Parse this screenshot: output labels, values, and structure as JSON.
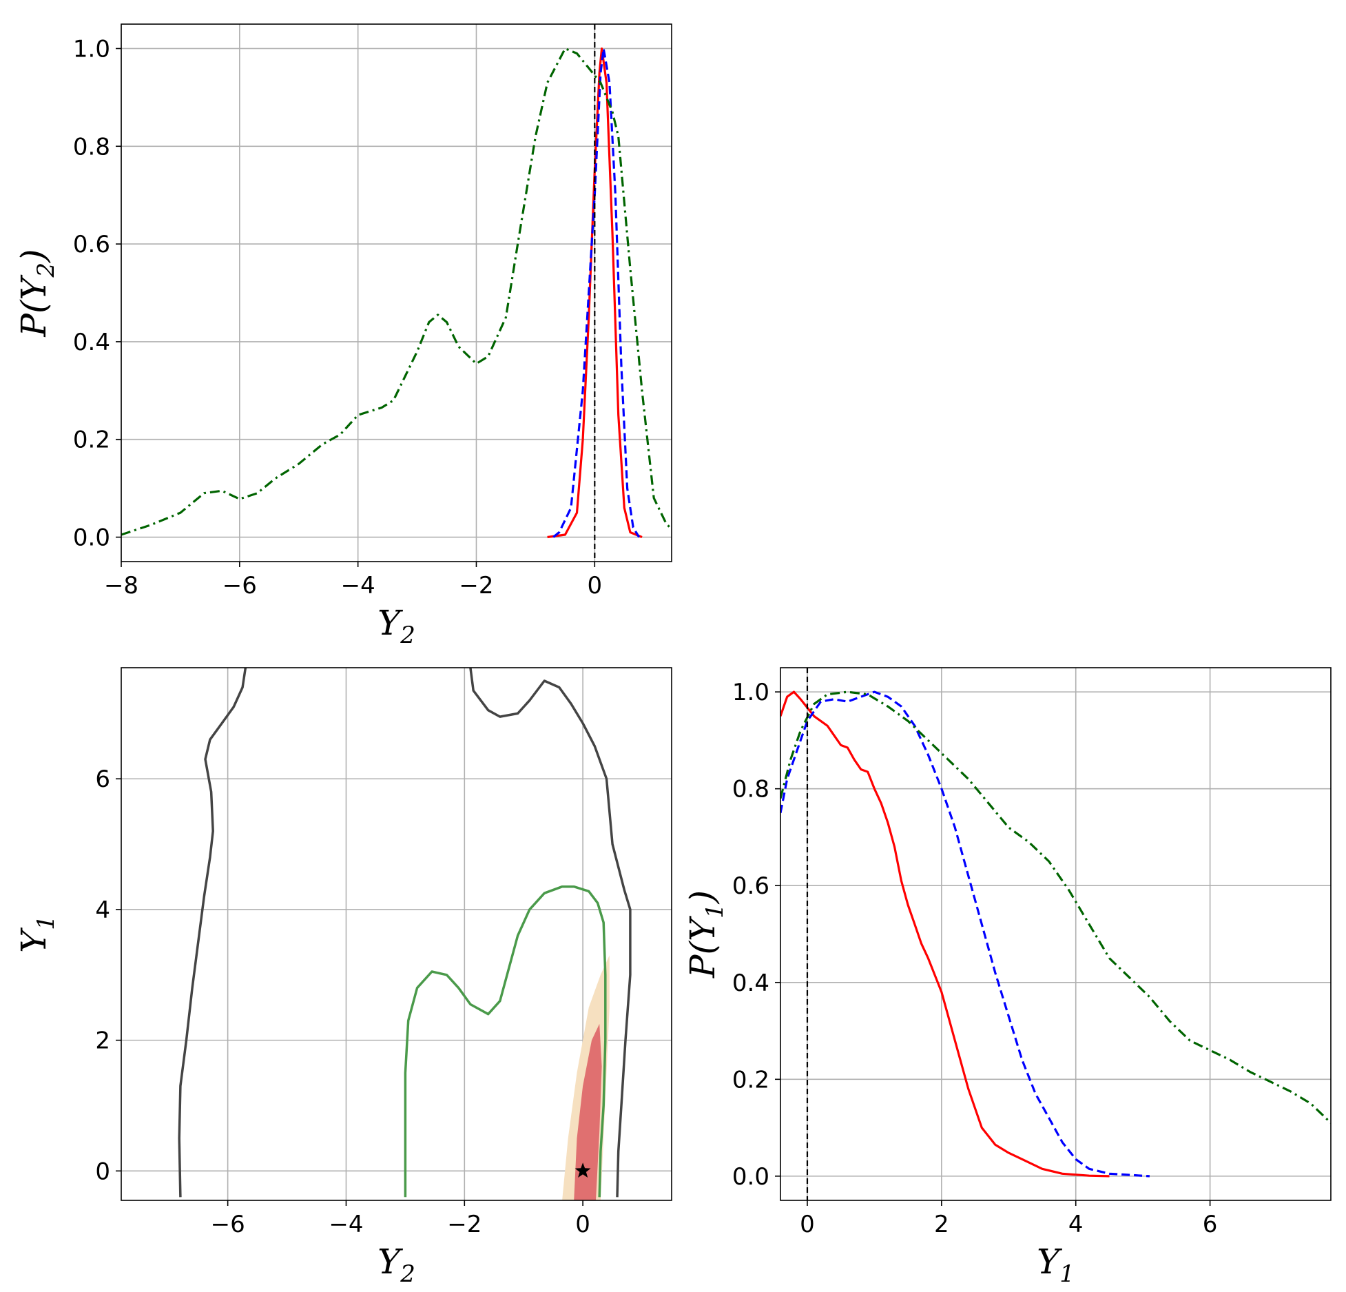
{
  "colors": {
    "method_a": "#ff0000",
    "method_b": "#0000ff",
    "method_c": "#006400",
    "truth": "#000000",
    "contour_outer": "#444444",
    "contour_mid": "#4a9a4a",
    "fill_inner": "#e07070",
    "fill_outer": "#f6e0c0"
  },
  "chart_data": [
    {
      "type": "line",
      "panel": "top-left",
      "xlabel": {
        "base": "Y",
        "sub": "2"
      },
      "ylabel": {
        "pre": "P(",
        "base": "Y",
        "sub": "2",
        "post": ")"
      },
      "xlim": [
        -8,
        1.3
      ],
      "ylim": [
        -0.05,
        1.05
      ],
      "xticks": [
        -8,
        -6,
        -4,
        -2,
        0
      ],
      "xtick_labels": [
        "−8",
        "−6",
        "−4",
        "−2",
        "0"
      ],
      "yticks": [
        0.0,
        0.2,
        0.4,
        0.6,
        0.8,
        1.0
      ],
      "ytick_labels": [
        "0.0",
        "0.2",
        "0.4",
        "0.6",
        "0.8",
        "1.0"
      ],
      "grid": true,
      "truth_x": 0,
      "series": [
        {
          "style": "solid",
          "color": "#ff0000",
          "points": [
            [
              -0.8,
              0.0
            ],
            [
              -0.5,
              0.005
            ],
            [
              -0.3,
              0.05
            ],
            [
              -0.2,
              0.2
            ],
            [
              -0.1,
              0.45
            ],
            [
              0.0,
              0.75
            ],
            [
              0.08,
              0.95
            ],
            [
              0.12,
              1.0
            ],
            [
              0.2,
              0.93
            ],
            [
              0.3,
              0.62
            ],
            [
              0.4,
              0.25
            ],
            [
              0.5,
              0.06
            ],
            [
              0.6,
              0.01
            ],
            [
              0.8,
              0.0
            ]
          ]
        },
        {
          "style": "dashed",
          "color": "#0000ff",
          "points": [
            [
              -0.7,
              0.0
            ],
            [
              -0.6,
              0.01
            ],
            [
              -0.4,
              0.06
            ],
            [
              -0.2,
              0.3
            ],
            [
              0.0,
              0.7
            ],
            [
              0.1,
              0.95
            ],
            [
              0.15,
              1.0
            ],
            [
              0.25,
              0.93
            ],
            [
              0.35,
              0.7
            ],
            [
              0.45,
              0.35
            ],
            [
              0.55,
              0.1
            ],
            [
              0.65,
              0.02
            ],
            [
              0.75,
              0.0
            ]
          ]
        },
        {
          "style": "dashdot",
          "color": "#006400",
          "points": [
            [
              -8.0,
              0.005
            ],
            [
              -7.5,
              0.025
            ],
            [
              -7.0,
              0.05
            ],
            [
              -6.6,
              0.09
            ],
            [
              -6.3,
              0.095
            ],
            [
              -6.0,
              0.078
            ],
            [
              -5.7,
              0.09
            ],
            [
              -5.4,
              0.12
            ],
            [
              -5.0,
              0.15
            ],
            [
              -4.6,
              0.19
            ],
            [
              -4.3,
              0.21
            ],
            [
              -4.0,
              0.25
            ],
            [
              -3.6,
              0.265
            ],
            [
              -3.4,
              0.28
            ],
            [
              -3.2,
              0.33
            ],
            [
              -3.0,
              0.38
            ],
            [
              -2.8,
              0.44
            ],
            [
              -2.65,
              0.455
            ],
            [
              -2.5,
              0.44
            ],
            [
              -2.3,
              0.39
            ],
            [
              -2.0,
              0.355
            ],
            [
              -1.8,
              0.37
            ],
            [
              -1.5,
              0.45
            ],
            [
              -1.3,
              0.6
            ],
            [
              -1.0,
              0.82
            ],
            [
              -0.8,
              0.93
            ],
            [
              -0.5,
              1.0
            ],
            [
              -0.3,
              0.99
            ],
            [
              -0.1,
              0.96
            ],
            [
              0.1,
              0.93
            ],
            [
              0.3,
              0.87
            ],
            [
              0.4,
              0.82
            ],
            [
              0.6,
              0.55
            ],
            [
              0.8,
              0.3
            ],
            [
              1.0,
              0.08
            ],
            [
              1.2,
              0.03
            ],
            [
              1.3,
              0.015
            ]
          ]
        }
      ]
    },
    {
      "type": "contour",
      "panel": "bottom-left",
      "xlabel": {
        "base": "Y",
        "sub": "2"
      },
      "ylabel": {
        "base": "Y",
        "sub": "1"
      },
      "xlim": [
        -7.8,
        1.5
      ],
      "ylim": [
        -0.45,
        7.7
      ],
      "xticks": [
        -6,
        -4,
        -2,
        0
      ],
      "xtick_labels": [
        "−6",
        "−4",
        "−2",
        "0"
      ],
      "yticks": [
        0,
        2,
        4,
        6
      ],
      "ytick_labels": [
        "0",
        "2",
        "4",
        "6"
      ],
      "grid": true,
      "truth_point": [
        0,
        0
      ],
      "filled_regions": [
        {
          "level": "outer",
          "color": "#f6e0c0",
          "points": [
            [
              -0.35,
              -0.45
            ],
            [
              -0.25,
              0.5
            ],
            [
              -0.1,
              1.5
            ],
            [
              0.1,
              2.5
            ],
            [
              0.3,
              3.0
            ],
            [
              0.45,
              3.3
            ],
            [
              0.45,
              2.5
            ],
            [
              0.4,
              1.5
            ],
            [
              0.35,
              0.5
            ],
            [
              0.3,
              -0.45
            ]
          ]
        },
        {
          "level": "inner",
          "color": "#e07070",
          "points": [
            [
              -0.15,
              -0.45
            ],
            [
              -0.1,
              0.5
            ],
            [
              0.0,
              1.3
            ],
            [
              0.15,
              2.0
            ],
            [
              0.28,
              2.25
            ],
            [
              0.32,
              1.6
            ],
            [
              0.28,
              0.6
            ],
            [
              0.22,
              -0.45
            ]
          ]
        }
      ],
      "contours": [
        {
          "color": "#444444",
          "points": [
            [
              -6.8,
              -0.4
            ],
            [
              -6.82,
              0.5
            ],
            [
              -6.8,
              1.3
            ],
            [
              -6.7,
              2.0
            ],
            [
              -6.6,
              2.8
            ],
            [
              -6.5,
              3.5
            ],
            [
              -6.4,
              4.2
            ],
            [
              -6.3,
              4.8
            ],
            [
              -6.25,
              5.2
            ],
            [
              -6.28,
              5.8
            ],
            [
              -6.38,
              6.3
            ],
            [
              -6.3,
              6.6
            ],
            [
              -6.1,
              6.85
            ],
            [
              -5.9,
              7.1
            ],
            [
              -5.75,
              7.4
            ],
            [
              -5.7,
              7.7
            ]
          ]
        },
        {
          "color": "#444444",
          "points": [
            [
              -1.9,
              7.7
            ],
            [
              -1.85,
              7.35
            ],
            [
              -1.6,
              7.05
            ],
            [
              -1.4,
              6.95
            ],
            [
              -1.1,
              7.0
            ],
            [
              -0.9,
              7.2
            ],
            [
              -0.65,
              7.5
            ],
            [
              -0.4,
              7.4
            ],
            [
              -0.2,
              7.15
            ],
            [
              0.0,
              6.85
            ],
            [
              0.2,
              6.5
            ],
            [
              0.4,
              6.0
            ],
            [
              0.5,
              5.0
            ],
            [
              0.7,
              4.3
            ],
            [
              0.8,
              4.0
            ],
            [
              0.8,
              3.0
            ],
            [
              0.72,
              2.0
            ],
            [
              0.65,
              1.0
            ],
            [
              0.6,
              0.3
            ],
            [
              0.58,
              -0.4
            ]
          ]
        },
        {
          "color": "#4a9a4a",
          "points": [
            [
              -3.0,
              -0.4
            ],
            [
              -3.0,
              0.5
            ],
            [
              -3.0,
              1.5
            ],
            [
              -2.95,
              2.3
            ],
            [
              -2.8,
              2.8
            ],
            [
              -2.55,
              3.05
            ],
            [
              -2.3,
              3.0
            ],
            [
              -2.1,
              2.8
            ],
            [
              -1.9,
              2.55
            ],
            [
              -1.6,
              2.4
            ],
            [
              -1.4,
              2.6
            ],
            [
              -1.25,
              3.1
            ],
            [
              -1.1,
              3.6
            ],
            [
              -0.9,
              4.0
            ],
            [
              -0.65,
              4.25
            ],
            [
              -0.35,
              4.35
            ],
            [
              -0.15,
              4.35
            ],
            [
              0.1,
              4.28
            ],
            [
              0.25,
              4.1
            ],
            [
              0.35,
              3.8
            ],
            [
              0.38,
              3.0
            ],
            [
              0.38,
              2.0
            ],
            [
              0.35,
              1.0
            ],
            [
              0.3,
              0.3
            ],
            [
              0.28,
              -0.4
            ]
          ]
        }
      ]
    },
    {
      "type": "line",
      "panel": "bottom-right",
      "xlabel": {
        "base": "Y",
        "sub": "1"
      },
      "ylabel": {
        "pre": "P(",
        "base": "Y",
        "sub": "1",
        "post": ")"
      },
      "xlim": [
        -0.4,
        7.8
      ],
      "ylim": [
        -0.05,
        1.05
      ],
      "xticks": [
        0,
        2,
        4,
        6
      ],
      "xtick_labels": [
        "0",
        "2",
        "4",
        "6"
      ],
      "yticks": [
        0.0,
        0.2,
        0.4,
        0.6,
        0.8,
        1.0
      ],
      "ytick_labels": [
        "0.0",
        "0.2",
        "0.4",
        "0.6",
        "0.8",
        "1.0"
      ],
      "grid": true,
      "truth_x": 0,
      "series": [
        {
          "style": "solid",
          "color": "#ff0000",
          "points": [
            [
              -0.4,
              0.95
            ],
            [
              -0.3,
              0.99
            ],
            [
              -0.2,
              1.0
            ],
            [
              -0.1,
              0.985
            ],
            [
              0.1,
              0.95
            ],
            [
              0.3,
              0.93
            ],
            [
              0.4,
              0.91
            ],
            [
              0.5,
              0.89
            ],
            [
              0.6,
              0.885
            ],
            [
              0.7,
              0.86
            ],
            [
              0.8,
              0.84
            ],
            [
              0.9,
              0.835
            ],
            [
              1.0,
              0.8
            ],
            [
              1.1,
              0.77
            ],
            [
              1.2,
              0.73
            ],
            [
              1.3,
              0.68
            ],
            [
              1.4,
              0.61
            ],
            [
              1.5,
              0.56
            ],
            [
              1.6,
              0.52
            ],
            [
              1.7,
              0.48
            ],
            [
              1.8,
              0.45
            ],
            [
              2.0,
              0.38
            ],
            [
              2.2,
              0.28
            ],
            [
              2.4,
              0.18
            ],
            [
              2.6,
              0.1
            ],
            [
              2.8,
              0.065
            ],
            [
              3.0,
              0.048
            ],
            [
              3.2,
              0.035
            ],
            [
              3.5,
              0.015
            ],
            [
              3.8,
              0.005
            ],
            [
              4.2,
              0.001
            ],
            [
              4.5,
              0.0
            ]
          ]
        },
        {
          "style": "dashed",
          "color": "#0000ff",
          "points": [
            [
              -0.4,
              0.75
            ],
            [
              -0.3,
              0.82
            ],
            [
              -0.1,
              0.9
            ],
            [
              0.0,
              0.94
            ],
            [
              0.2,
              0.98
            ],
            [
              0.4,
              0.985
            ],
            [
              0.6,
              0.98
            ],
            [
              0.8,
              0.99
            ],
            [
              1.0,
              1.0
            ],
            [
              1.2,
              0.99
            ],
            [
              1.4,
              0.97
            ],
            [
              1.6,
              0.93
            ],
            [
              1.8,
              0.87
            ],
            [
              2.0,
              0.8
            ],
            [
              2.2,
              0.72
            ],
            [
              2.4,
              0.62
            ],
            [
              2.6,
              0.52
            ],
            [
              2.8,
              0.42
            ],
            [
              3.0,
              0.33
            ],
            [
              3.2,
              0.24
            ],
            [
              3.4,
              0.17
            ],
            [
              3.6,
              0.12
            ],
            [
              3.8,
              0.07
            ],
            [
              4.0,
              0.035
            ],
            [
              4.2,
              0.015
            ],
            [
              4.5,
              0.005
            ],
            [
              5.1,
              0.0
            ]
          ]
        },
        {
          "style": "dashdot",
          "color": "#006400",
          "points": [
            [
              -0.4,
              0.78
            ],
            [
              -0.25,
              0.86
            ],
            [
              -0.1,
              0.92
            ],
            [
              0.1,
              0.975
            ],
            [
              0.3,
              0.995
            ],
            [
              0.6,
              1.0
            ],
            [
              0.9,
              0.995
            ],
            [
              1.2,
              0.97
            ],
            [
              1.5,
              0.94
            ],
            [
              1.8,
              0.9
            ],
            [
              2.1,
              0.86
            ],
            [
              2.4,
              0.82
            ],
            [
              2.7,
              0.77
            ],
            [
              3.0,
              0.72
            ],
            [
              3.3,
              0.69
            ],
            [
              3.6,
              0.65
            ],
            [
              3.9,
              0.59
            ],
            [
              4.2,
              0.52
            ],
            [
              4.5,
              0.45
            ],
            [
              4.8,
              0.41
            ],
            [
              5.1,
              0.37
            ],
            [
              5.4,
              0.32
            ],
            [
              5.7,
              0.28
            ],
            [
              6.0,
              0.26
            ],
            [
              6.3,
              0.24
            ],
            [
              6.6,
              0.215
            ],
            [
              6.9,
              0.195
            ],
            [
              7.2,
              0.175
            ],
            [
              7.5,
              0.15
            ],
            [
              7.8,
              0.11
            ]
          ]
        }
      ]
    }
  ]
}
